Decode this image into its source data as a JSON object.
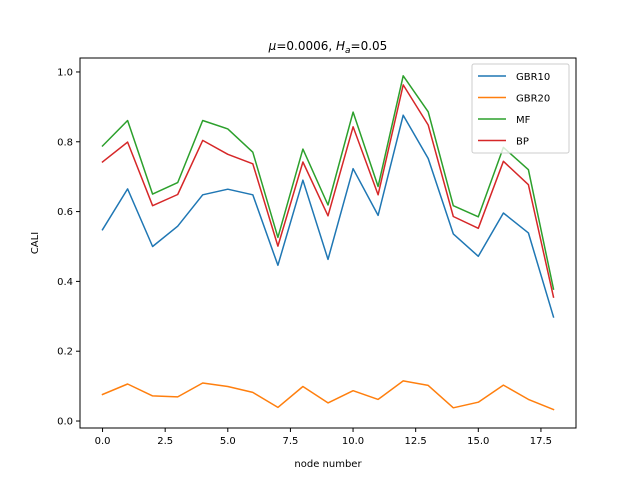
{
  "chart_data": {
    "type": "line",
    "title": {
      "mu_symbol": "μ",
      "mu_value": "=0.0006, ",
      "h_symbol": "H",
      "h_sub": "a",
      "h_value": "=0.05"
    },
    "xlabel": "node number",
    "ylabel": "CALI",
    "xlim": [
      -0.9,
      18.9
    ],
    "ylim": [
      -0.02,
      1.04
    ],
    "xticks": [
      0,
      2.5,
      5,
      7.5,
      10,
      12.5,
      15,
      17.5
    ],
    "xtick_labels": [
      "0.0",
      "2.5",
      "5.0",
      "7.5",
      "10.0",
      "12.5",
      "15.0",
      "17.5"
    ],
    "yticks": [
      0,
      0.2,
      0.4,
      0.6,
      0.8,
      1.0
    ],
    "ytick_labels": [
      "0.0",
      "0.2",
      "0.4",
      "0.6",
      "0.8",
      "1.0"
    ],
    "grid": false,
    "legend_position": "top-right",
    "x": [
      0,
      1,
      2,
      3,
      4,
      5,
      6,
      7,
      8,
      9,
      10,
      11,
      12,
      13,
      14,
      15,
      16,
      17,
      18
    ],
    "series": [
      {
        "name": "GBR10",
        "color": "#1f77b4",
        "values": [
          0.548,
          0.665,
          0.5,
          0.558,
          0.648,
          0.664,
          0.648,
          0.446,
          0.69,
          0.463,
          0.723,
          0.589,
          0.876,
          0.752,
          0.536,
          0.472,
          0.596,
          0.539,
          0.298
        ]
      },
      {
        "name": "GBR20",
        "color": "#ff7f0e",
        "values": [
          0.076,
          0.106,
          0.072,
          0.069,
          0.109,
          0.099,
          0.082,
          0.039,
          0.099,
          0.052,
          0.087,
          0.062,
          0.115,
          0.102,
          0.038,
          0.054,
          0.103,
          0.062,
          0.033
        ]
      },
      {
        "name": "MF",
        "color": "#2ca02c",
        "values": [
          0.788,
          0.861,
          0.65,
          0.683,
          0.861,
          0.837,
          0.77,
          0.526,
          0.779,
          0.619,
          0.885,
          0.672,
          0.989,
          0.886,
          0.617,
          0.585,
          0.784,
          0.72,
          0.378
        ]
      },
      {
        "name": "BP",
        "color": "#d62728",
        "values": [
          0.742,
          0.799,
          0.617,
          0.649,
          0.804,
          0.764,
          0.737,
          0.501,
          0.742,
          0.588,
          0.843,
          0.648,
          0.963,
          0.848,
          0.586,
          0.552,
          0.744,
          0.677,
          0.355
        ]
      }
    ]
  }
}
